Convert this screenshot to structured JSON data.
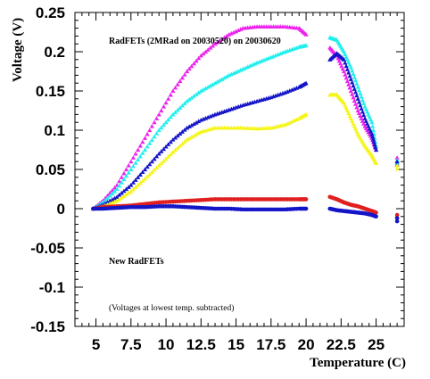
{
  "chart_data": {
    "type": "scatter",
    "xlabel": "Temperature (C)",
    "ylabel": "Voltage (V)",
    "xlim": [
      3.5,
      27.0
    ],
    "ylim": [
      -0.15,
      0.25
    ],
    "x_ticks": [
      5,
      7.5,
      10,
      12.5,
      15,
      17.5,
      20,
      22.5,
      25
    ],
    "x_tick_labels": [
      "5",
      "7.5",
      "10",
      "12.5",
      "15",
      "17.5",
      "20",
      "22.5",
      "25"
    ],
    "y_ticks": [
      0.25,
      0.2,
      0.15,
      0.1,
      0.05,
      0,
      -0.05,
      -0.1,
      -0.15
    ],
    "y_tick_labels": [
      "0.25",
      "0.2",
      "0.15",
      "0.1",
      "0.05",
      "0",
      "-0.05",
      "-0.1",
      "-0.15"
    ],
    "grid": false,
    "legend": "none",
    "annotations": [
      {
        "text": "RadFETs (2MRad on 20030520) on 20030620"
      },
      {
        "text": "New RadFETs"
      },
      {
        "text": "(Voltages at lowest temp. subtracted)"
      }
    ],
    "series": [
      {
        "color": "#ee22ee",
        "marker": "triangle",
        "segments": [
          {
            "x": [
              4.8,
              5.5,
              6.5,
              7.5,
              8.5,
              9.5,
              10.5,
              11.5,
              12.5,
              13.5,
              14.5,
              15.5,
              16.5,
              17.5,
              18.5,
              19.5,
              20.0
            ],
            "y": [
              0.0,
              0.01,
              0.03,
              0.06,
              0.09,
              0.12,
              0.15,
              0.175,
              0.195,
              0.21,
              0.222,
              0.23,
              0.232,
              0.232,
              0.232,
              0.23,
              0.222
            ]
          },
          {
            "x": [
              21.7,
              22.2,
              22.7,
              23.2,
              23.7,
              24.2,
              24.7,
              25.0
            ],
            "y": [
              0.205,
              0.195,
              0.175,
              0.15,
              0.125,
              0.105,
              0.09,
              0.075
            ]
          },
          {
            "x": [
              26.5
            ],
            "y": [
              0.065
            ]
          }
        ]
      },
      {
        "color": "#22eeee",
        "marker": "triangle",
        "segments": [
          {
            "x": [
              4.8,
              5.5,
              6.5,
              7.5,
              8.5,
              9.5,
              10.5,
              11.5,
              12.5,
              13.5,
              14.5,
              15.5,
              16.5,
              17.5,
              18.5,
              19.5,
              20.0
            ],
            "y": [
              0.0,
              0.008,
              0.025,
              0.05,
              0.075,
              0.1,
              0.12,
              0.137,
              0.15,
              0.16,
              0.17,
              0.178,
              0.186,
              0.193,
              0.2,
              0.206,
              0.208
            ]
          },
          {
            "x": [
              21.7,
              22.2,
              22.7,
              23.2,
              23.7,
              24.2,
              24.7,
              25.0
            ],
            "y": [
              0.218,
              0.215,
              0.2,
              0.18,
              0.155,
              0.13,
              0.11,
              0.08
            ]
          },
          {
            "x": [
              26.5
            ],
            "y": [
              0.062
            ]
          }
        ]
      },
      {
        "color": "#1515c8",
        "marker": "triangle",
        "segments": [
          {
            "x": [
              4.8,
              5.5,
              6.5,
              7.5,
              8.5,
              9.5,
              10.5,
              11.5,
              12.5,
              13.5,
              14.5,
              15.5,
              16.5,
              17.5,
              18.5,
              19.5,
              20.0
            ],
            "y": [
              0.0,
              0.005,
              0.015,
              0.03,
              0.05,
              0.07,
              0.088,
              0.103,
              0.113,
              0.12,
              0.126,
              0.132,
              0.137,
              0.142,
              0.148,
              0.155,
              0.16
            ]
          },
          {
            "x": [
              21.7,
              22.2,
              22.7,
              23.2,
              23.7,
              24.2,
              24.7,
              25.0
            ],
            "y": [
              0.19,
              0.198,
              0.19,
              0.165,
              0.14,
              0.115,
              0.095,
              0.075
            ]
          },
          {
            "x": [
              26.5
            ],
            "y": [
              0.06
            ]
          }
        ]
      },
      {
        "color": "#f5f51c",
        "marker": "triangle",
        "segments": [
          {
            "x": [
              4.8,
              5.5,
              6.5,
              7.5,
              8.5,
              9.5,
              10.5,
              11.5,
              12.5,
              13.5,
              14.5,
              15.5,
              16.5,
              17.5,
              18.5,
              19.5,
              20.0
            ],
            "y": [
              0.0,
              0.003,
              0.01,
              0.022,
              0.038,
              0.055,
              0.072,
              0.088,
              0.098,
              0.103,
              0.103,
              0.103,
              0.102,
              0.103,
              0.107,
              0.115,
              0.12
            ]
          },
          {
            "x": [
              21.7,
              22.2,
              22.7,
              23.2,
              23.7,
              24.2,
              24.7,
              25.0
            ],
            "y": [
              0.145,
              0.145,
              0.135,
              0.115,
              0.095,
              0.08,
              0.068,
              0.058
            ]
          },
          {
            "x": [
              26.5
            ],
            "y": [
              0.055
            ]
          }
        ]
      },
      {
        "color": "#e02020",
        "marker": "circle",
        "segments": [
          {
            "x": [
              4.8,
              5.5,
              6.5,
              7.5,
              8.5,
              9.5,
              10.5,
              11.5,
              12.5,
              13.5,
              14.5,
              15.5,
              16.5,
              17.5,
              18.5,
              19.5,
              20.0
            ],
            "y": [
              0.0,
              0.002,
              0.003,
              0.004,
              0.006,
              0.008,
              0.009,
              0.01,
              0.011,
              0.012,
              0.012,
              0.012,
              0.012,
              0.012,
              0.012,
              0.012,
              0.012
            ]
          },
          {
            "x": [
              21.7,
              22.2,
              22.7,
              23.2,
              23.7,
              24.2,
              24.7,
              25.0
            ],
            "y": [
              0.015,
              0.012,
              0.008,
              0.005,
              0.003,
              0.0,
              -0.003,
              -0.005
            ]
          },
          {
            "x": [
              26.5
            ],
            "y": [
              -0.008
            ]
          }
        ]
      },
      {
        "color": "#1515c8",
        "marker": "circle",
        "segments": [
          {
            "x": [
              4.8,
              5.5,
              6.5,
              7.5,
              8.5,
              9.5,
              10.5,
              11.5,
              12.5,
              13.5,
              14.5,
              15.5,
              16.5,
              17.5,
              18.5,
              19.5,
              20.0
            ],
            "y": [
              0.0,
              0.0,
              0.001,
              0.002,
              0.002,
              0.003,
              0.003,
              0.002,
              0.001,
              0.0,
              0.0,
              -0.001,
              -0.001,
              -0.001,
              -0.001,
              0.0,
              0.0
            ]
          },
          {
            "x": [
              21.7,
              22.2,
              22.7,
              23.2,
              23.7,
              24.2,
              24.7,
              25.0
            ],
            "y": [
              0.0,
              -0.002,
              -0.003,
              -0.004,
              -0.005,
              -0.006,
              -0.008,
              -0.01
            ]
          },
          {
            "x": [
              26.5
            ],
            "y": [
              -0.012
            ]
          }
        ]
      }
    ]
  }
}
